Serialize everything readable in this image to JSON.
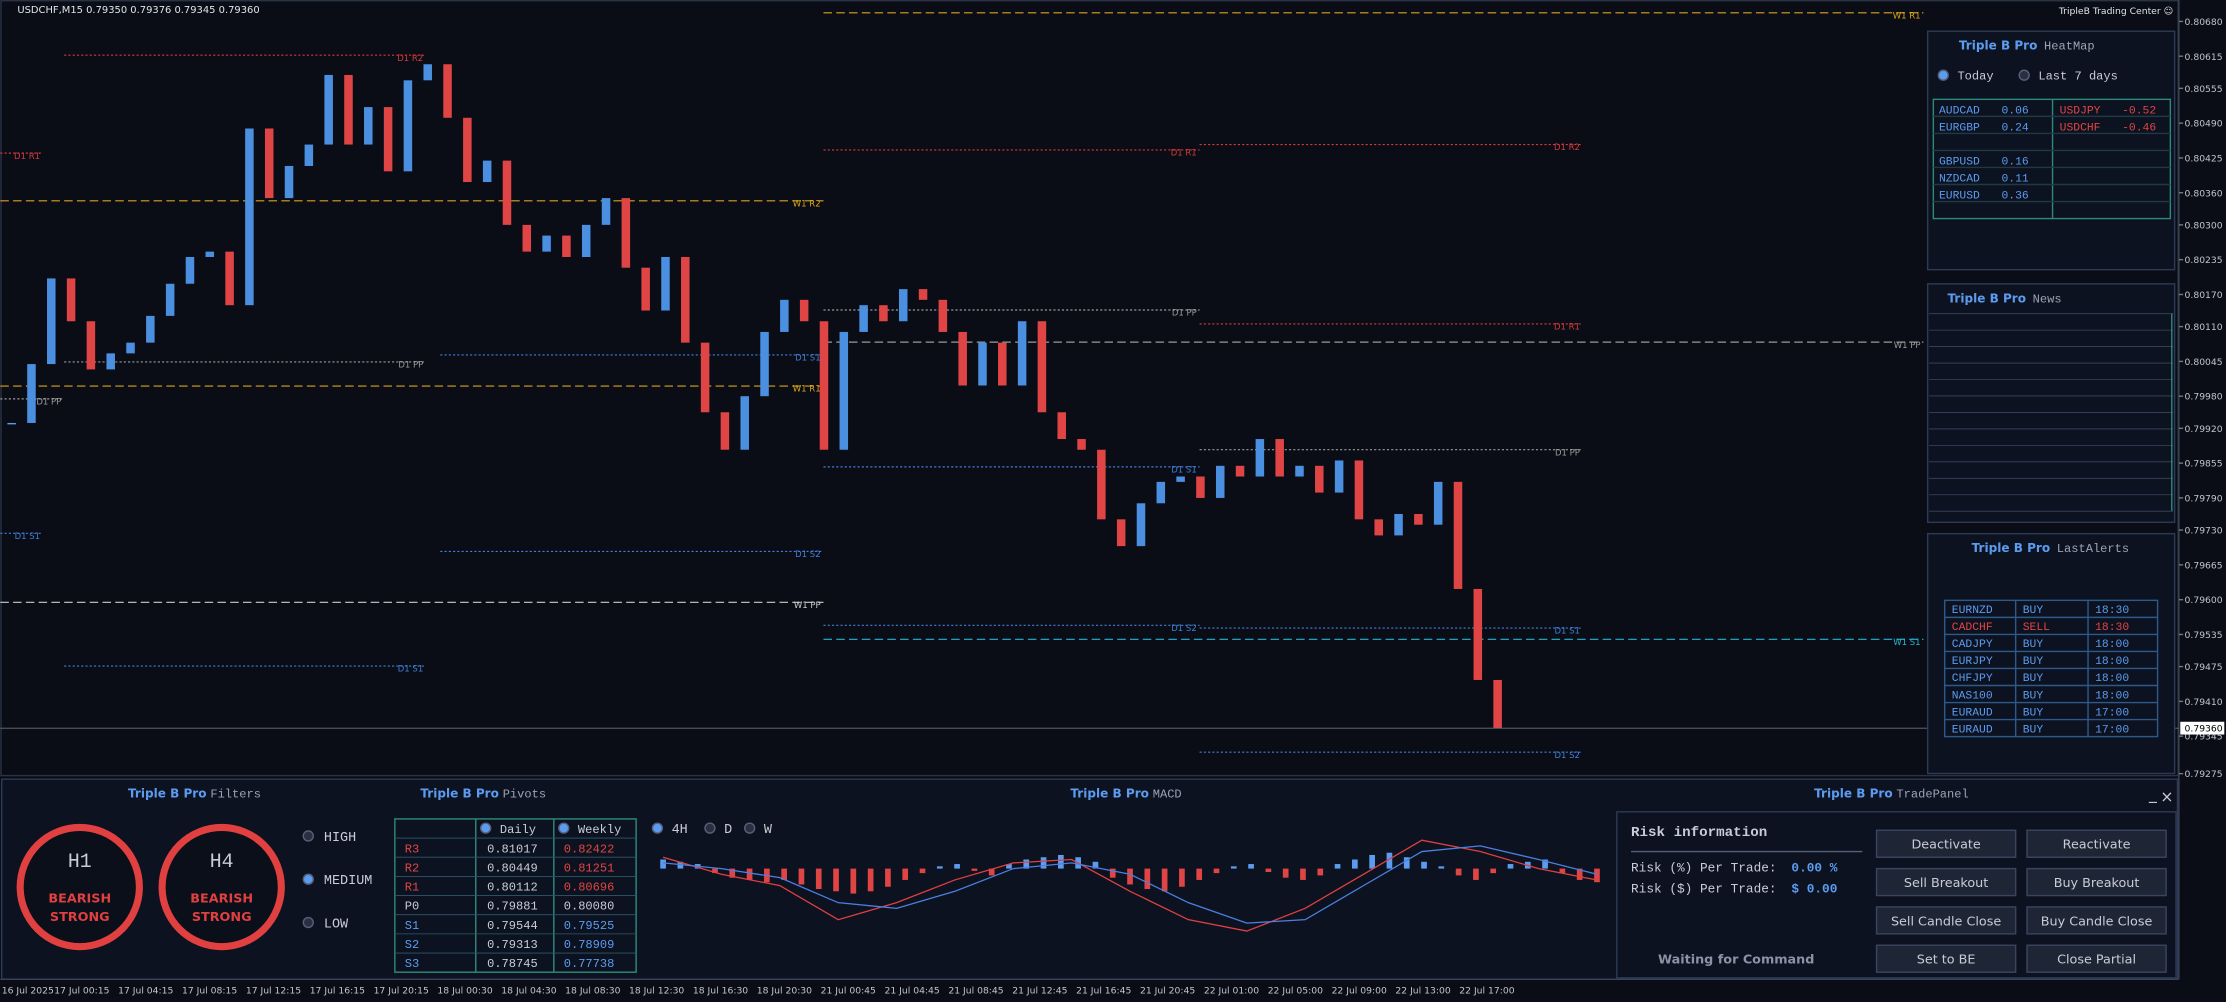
{
  "price_chart": {
    "header": "USDCHF,M15  0.79350 0.79376 0.79345 0.79360",
    "brand": "TripleB Trading Center ☺",
    "ylim": [
      0.7927,
      0.8072
    ],
    "yticks": [
      {
        "value": 0.8068,
        "label": "0.80680"
      },
      {
        "value": 0.80615,
        "label": "0.80615"
      },
      {
        "value": 0.80555,
        "label": "0.80555"
      },
      {
        "value": 0.8049,
        "label": "0.80490"
      },
      {
        "value": 0.80425,
        "label": "0.80425"
      },
      {
        "value": 0.8036,
        "label": "0.80360"
      },
      {
        "value": 0.803,
        "label": "0.80300"
      },
      {
        "value": 0.80235,
        "label": "0.80235"
      },
      {
        "value": 0.8017,
        "label": "0.80170"
      },
      {
        "value": 0.8011,
        "label": "0.80110"
      },
      {
        "value": 0.80045,
        "label": "0.80045"
      },
      {
        "value": 0.7998,
        "label": "0.79980"
      },
      {
        "value": 0.7992,
        "label": "0.79920"
      },
      {
        "value": 0.79855,
        "label": "0.79855"
      },
      {
        "value": 0.7979,
        "label": "0.79790"
      },
      {
        "value": 0.7973,
        "label": "0.79730"
      },
      {
        "value": 0.79665,
        "label": "0.79665"
      },
      {
        "value": 0.796,
        "label": "0.79600"
      },
      {
        "value": 0.79535,
        "label": "0.79535"
      },
      {
        "value": 0.79475,
        "label": "0.79475"
      },
      {
        "value": 0.7941,
        "label": "0.79410"
      },
      {
        "value": 0.79345,
        "label": "0.79345"
      },
      {
        "value": 0.79275,
        "label": "0.79275"
      }
    ],
    "closes": [
      0.7993,
      0.8004,
      0.802,
      0.8012,
      0.8003,
      0.8006,
      0.8008,
      0.8013,
      0.8019,
      0.8024,
      0.8025,
      0.8015,
      0.8048,
      0.8035,
      0.8041,
      0.8045,
      0.8058,
      0.8045,
      0.8052,
      0.804,
      0.8057,
      0.806,
      0.805,
      0.8038,
      0.8042,
      0.803,
      0.8025,
      0.8028,
      0.8024,
      0.803,
      0.8035,
      0.8022,
      0.8014,
      0.8024,
      0.8008,
      0.7995,
      0.7988,
      0.7998,
      0.801,
      0.8016,
      0.8012,
      0.7988,
      0.801,
      0.8015,
      0.8012,
      0.8018,
      0.8016,
      0.801,
      0.8,
      0.8008,
      0.8,
      0.8012,
      0.7995,
      0.799,
      0.7988,
      0.7975,
      0.797,
      0.7978,
      0.7982,
      0.7983,
      0.7979,
      0.7985,
      0.7983,
      0.799,
      0.7983,
      0.7985,
      0.798,
      0.7986,
      0.7975,
      0.7972,
      0.7976,
      0.7974,
      0.7982,
      0.7962,
      0.7945,
      0.7936
    ],
    "price_tag": {
      "value": 0.7936,
      "label": "0.79360"
    },
    "levels": [
      {
        "label": "W1 R1",
        "value": 0.80696,
        "color": "#d9a21b"
      },
      {
        "label": "D1 R2",
        "value": 0.80617,
        "color": "#d23a3a"
      },
      {
        "label": "D1 R1",
        "value": 0.80434,
        "color": "#d23a3a"
      },
      {
        "label": "D1 R1",
        "value": 0.8044,
        "color": "#d23a3a"
      },
      {
        "label": "D1 R2",
        "value": 0.8045,
        "color": "#d23a3a"
      },
      {
        "label": "W1 R2",
        "value": 0.80345,
        "color": "#d9a21b"
      },
      {
        "label": "D1 PP",
        "value": 0.80141,
        "color": "#9a9a9a"
      },
      {
        "label": "D1 R1",
        "value": 0.80115,
        "color": "#d23a3a"
      },
      {
        "label": "W1 PP",
        "value": 0.80081,
        "color": "#9a9a9a"
      },
      {
        "label": "D1 S1",
        "value": 0.80057,
        "color": "#3f7fd6"
      },
      {
        "label": "D1 PP",
        "value": 0.80044,
        "color": "#9a9a9a"
      },
      {
        "label": "W1 R1",
        "value": 0.79999,
        "color": "#d9a21b"
      },
      {
        "label": "D1 PP",
        "value": 0.79975,
        "color": "#9a9a9a"
      },
      {
        "label": "D1 PP",
        "value": 0.7988,
        "color": "#9a9a9a"
      },
      {
        "label": "D1 S1",
        "value": 0.79848,
        "color": "#3f7fd6"
      },
      {
        "label": "D1 S1",
        "value": 0.79724,
        "color": "#3f7fd6"
      },
      {
        "label": "D1 S2",
        "value": 0.7969,
        "color": "#3f7fd6"
      },
      {
        "label": "W1 PP",
        "value": 0.79595,
        "color": "#cccccc"
      },
      {
        "label": "D1 S2",
        "value": 0.79552,
        "color": "#3f7fd6"
      },
      {
        "label": "D1 S1",
        "value": 0.79547,
        "color": "#3f7fd6"
      },
      {
        "label": "W1 S1",
        "value": 0.79526,
        "color": "#25b5d6"
      },
      {
        "label": "D1 S1",
        "value": 0.79476,
        "color": "#3f7fd6"
      },
      {
        "label": "D1 S2",
        "value": 0.79315,
        "color": "#3f7fd6"
      }
    ],
    "time_labels": [
      "16 Jul 2025",
      "17 Jul 00:15",
      "17 Jul 04:15",
      "17 Jul 08:15",
      "17 Jul 12:15",
      "17 Jul 16:15",
      "17 Jul 20:15",
      "18 Jul 00:30",
      "18 Jul 04:30",
      "18 Jul 08:30",
      "18 Jul 12:30",
      "18 Jul 16:30",
      "18 Jul 20:30",
      "21 Jul 00:45",
      "21 Jul 04:45",
      "21 Jul 08:45",
      "21 Jul 12:45",
      "21 Jul 16:45",
      "21 Jul 20:45",
      "22 Jul 01:00",
      "22 Jul 05:00",
      "22 Jul 09:00",
      "22 Jul 13:00",
      "22 Jul 17:00"
    ]
  },
  "heatmap": {
    "brand": "Triple B Pro",
    "title": "HeatMap",
    "tabs": [
      "Today",
      "Last 7 days"
    ],
    "left": [
      {
        "pair": "AUDCAD",
        "value": "0.06"
      },
      {
        "pair": "EURGBP",
        "value": "0.24"
      },
      {
        "pair": "GBPUSD",
        "value": "0.16"
      },
      {
        "pair": "NZDCAD",
        "value": "0.11"
      },
      {
        "pair": "EURUSD",
        "value": "0.36"
      }
    ],
    "right": [
      {
        "pair": "USDJPY",
        "value": "-0.52"
      },
      {
        "pair": "USDCHF",
        "value": "-0.46"
      }
    ]
  },
  "news": {
    "brand": "Triple B Pro",
    "title": "News"
  },
  "alerts": {
    "brand": "Triple B Pro",
    "title": "LastAlerts",
    "rows": [
      [
        "EURNZD",
        "BUY",
        "18:30"
      ],
      [
        "CADCHF",
        "SELL",
        "18:30"
      ],
      [
        "CADJPY",
        "BUY",
        "18:00"
      ],
      [
        "EURJPY",
        "BUY",
        "18:00"
      ],
      [
        "CHFJPY",
        "BUY",
        "18:00"
      ],
      [
        "NAS100",
        "BUY",
        "18:00"
      ],
      [
        "EURAUD",
        "BUY",
        "17:00"
      ],
      [
        "EURAUD",
        "BUY",
        "17:00"
      ]
    ]
  },
  "filters": {
    "brand": "Triple B Pro",
    "title": "Filters",
    "gauges": [
      {
        "tf": "H1",
        "signal": "BEARISH",
        "strength": "STRONG"
      },
      {
        "tf": "H4",
        "signal": "BEARISH",
        "strength": "STRONG"
      }
    ],
    "impact": [
      "HIGH",
      "MEDIUM",
      "LOW"
    ]
  },
  "pivots": {
    "brand": "Triple B Pro",
    "title": "Pivots",
    "columns": [
      "Daily",
      "Weekly"
    ],
    "rows": [
      [
        "R3",
        "0.81017",
        "0.82422"
      ],
      [
        "R2",
        "0.80449",
        "0.81251"
      ],
      [
        "R1",
        "0.80112",
        "0.80696"
      ],
      [
        "P0",
        "0.79881",
        "0.80080"
      ],
      [
        "S1",
        "0.79544",
        "0.79525"
      ],
      [
        "S2",
        "0.79313",
        "0.78909"
      ],
      [
        "S3",
        "0.78745",
        "0.77738"
      ]
    ]
  },
  "macd": {
    "brand": "Triple B Pro",
    "title": "MACD",
    "timeframes": [
      "4H",
      "D",
      "W"
    ],
    "histogram": [
      8,
      6,
      4,
      -4,
      -8,
      -10,
      -12,
      -10,
      -14,
      -18,
      -20,
      -22,
      -20,
      -16,
      -10,
      -4,
      2,
      4,
      -2,
      -6,
      4,
      8,
      10,
      12,
      10,
      6,
      -8,
      -14,
      -18,
      -20,
      -16,
      -10,
      -4,
      2,
      4,
      -3,
      -8,
      -10,
      -6,
      4,
      8,
      12,
      14,
      10,
      6,
      2,
      -6,
      -10,
      -4,
      4,
      6,
      8,
      -4,
      -10,
      -12
    ],
    "macd_line": [
      10,
      -5,
      -15,
      -45,
      -30,
      -10,
      5,
      8,
      -20,
      -45,
      -55,
      -35,
      -5,
      25,
      15,
      0,
      -10
    ],
    "signal_line": [
      5,
      0,
      -8,
      -30,
      -35,
      -20,
      0,
      5,
      -5,
      -30,
      -48,
      -45,
      -15,
      15,
      20,
      8,
      -5
    ]
  },
  "trade_panel": {
    "brand": "Triple B Pro",
    "title": "TradePanel",
    "heading": "Risk information",
    "risk_pct_label": "Risk (%) Per Trade:",
    "risk_pct": "0.00 %",
    "risk_usd_label": "Risk ($) Per Trade:",
    "risk_usd": "$ 0.00",
    "status": "Waiting for Command",
    "buttons": [
      "Deactivate",
      "Reactivate",
      "Sell Breakout",
      "Buy Breakout",
      "Sell Candle Close",
      "Buy Candle Close",
      "Set to BE",
      "Close Partial"
    ]
  }
}
